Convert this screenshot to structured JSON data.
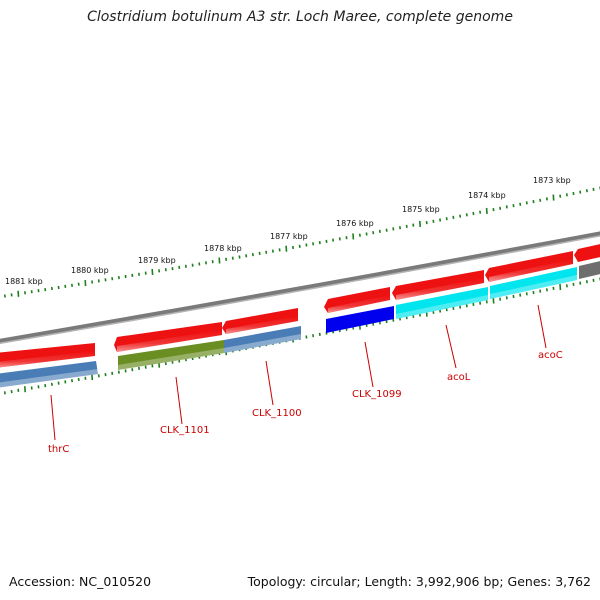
{
  "title": "Clostridium botulinum A3 str. Loch Maree, complete genome",
  "footer": {
    "accession": "Accession: NC_010520",
    "topology": "Topology: circular; Length: 3,992,906 bp; Genes: 3,762"
  },
  "scale_labels": [
    "1881 kbp",
    "1880 kbp",
    "1879 kbp",
    "1878 kbp",
    "1877 kbp",
    "1876 kbp",
    "1875 kbp",
    "1874 kbp",
    "1873 kbp"
  ],
  "gene_labels": [
    "thrC",
    "CLK_1101",
    "CLK_1100",
    "CLK_1099",
    "acoL",
    "acoC"
  ],
  "colors": {
    "backbone": "#7f7f7f",
    "cds_forward": "#ee0000",
    "thrC": "#4a7db5",
    "CLK_1101": "#6b8e23",
    "CLK_1100": "#4a7db5",
    "CLK_1099": "#0000ee",
    "acoL": "#00e5ee",
    "acoC": "#00e5ee",
    "label": "#cc0000",
    "scale": "#1f7f1f"
  }
}
